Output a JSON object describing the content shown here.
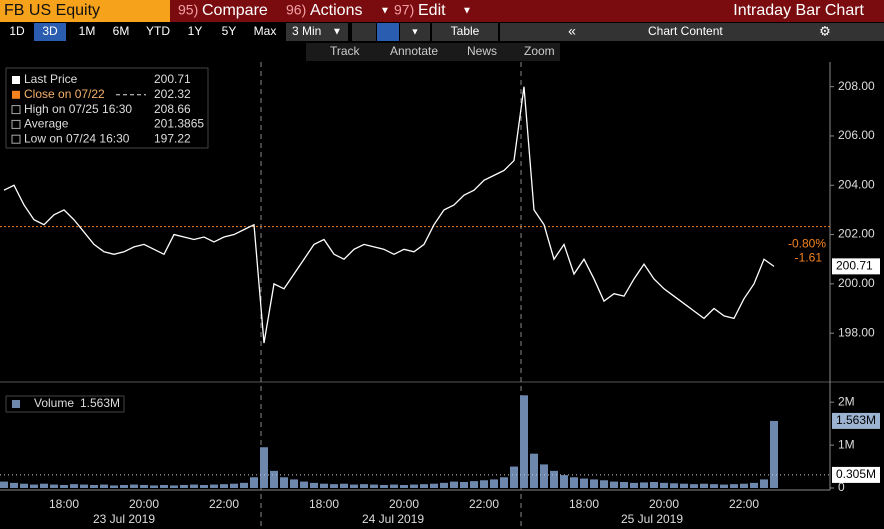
{
  "security": "FB US Equity",
  "menu": [
    {
      "number": "95)",
      "label": "Compare"
    },
    {
      "number": "96)",
      "label": "Actions"
    },
    {
      "number": "97)",
      "label": "Edit"
    }
  ],
  "screen_title": "Intraday Bar Chart",
  "periods": [
    "1D",
    "3D",
    "1M",
    "6M",
    "YTD",
    "1Y",
    "5Y",
    "Max"
  ],
  "selected_period": 1,
  "interval": "3 Min",
  "table_button": "Table",
  "chart_content_button": "Chart Content",
  "tools": [
    "Track",
    "Annotate",
    "News",
    "Zoom"
  ],
  "date_labels": [
    "23 Jul 2019",
    "24 Jul 2019",
    "25 Jul 2019"
  ],
  "chart_data": [
    {
      "type": "line",
      "color": "#ffffff",
      "categories": [
        null,
        null,
        null,
        null,
        null,
        null,
        "18:00",
        null,
        null,
        null,
        null,
        null,
        null,
        null,
        "20:00",
        null,
        null,
        null,
        null,
        null,
        null,
        null,
        "22:00",
        null,
        null,
        null,
        null,
        null,
        null,
        null,
        null,
        null,
        "18:00",
        null,
        null,
        null,
        null,
        null,
        null,
        null,
        "20:00",
        null,
        null,
        null,
        null,
        null,
        null,
        null,
        "22:00",
        null,
        null,
        null,
        null,
        null,
        null,
        null,
        null,
        null,
        "18:00",
        null,
        null,
        null,
        null,
        null,
        null,
        null,
        "20:00",
        null,
        null,
        null,
        null,
        null,
        null,
        null,
        "22:00",
        null,
        null,
        null
      ],
      "values": [
        203.8,
        204.0,
        203.2,
        202.6,
        202.4,
        202.8,
        203.0,
        202.6,
        202.1,
        201.6,
        201.3,
        201.2,
        201.3,
        201.5,
        201.6,
        201.4,
        201.2,
        202.0,
        201.9,
        201.8,
        201.9,
        201.7,
        201.9,
        202.0,
        202.2,
        202.4,
        197.6,
        200.0,
        199.8,
        200.4,
        201.0,
        201.6,
        201.8,
        201.2,
        201.0,
        201.4,
        201.6,
        201.5,
        201.4,
        201.2,
        201.4,
        201.3,
        201.6,
        202.4,
        203.0,
        203.2,
        203.6,
        203.8,
        204.2,
        204.4,
        204.6,
        205.0,
        208.0,
        203.0,
        202.4,
        201.0,
        201.6,
        200.4,
        201.0,
        200.2,
        199.3,
        199.6,
        199.5,
        200.2,
        200.8,
        200.2,
        199.8,
        199.5,
        199.2,
        198.9,
        198.6,
        199.0,
        198.7,
        198.6,
        199.4,
        200.0,
        201.0,
        200.71
      ],
      "ylim": [
        196.1,
        209
      ],
      "yticks": [
        {
          "value": 198,
          "label": "198.00"
        },
        {
          "value": 200,
          "label": "200.00"
        },
        {
          "value": 202,
          "label": "202.00"
        },
        {
          "value": 204,
          "label": "204.00"
        },
        {
          "value": 206,
          "label": "206.00"
        },
        {
          "value": 208,
          "label": "208.00"
        }
      ],
      "legend": [
        {
          "label": "Last Price",
          "value": 200.71
        },
        {
          "label": "Close on 07/22",
          "value": 202.32
        },
        {
          "label": "High on 07/25 16:30",
          "value": 208.66
        },
        {
          "label": "Average",
          "value": 201.3865
        },
        {
          "label": "Low on 07/24 16:30",
          "value": 197.22
        }
      ],
      "reference_color": "#f5821f",
      "change": -1.61,
      "change_pct": {
        "value": -0.8,
        "label": "-0.80%"
      }
    },
    {
      "type": "bar",
      "name": "Volume",
      "color": "#6d87ad",
      "values": [
        150000,
        120000,
        100000,
        80000,
        100000,
        80000,
        70000,
        90000,
        80000,
        70000,
        80000,
        60000,
        70000,
        80000,
        70000,
        60000,
        70000,
        60000,
        70000,
        80000,
        70000,
        80000,
        90000,
        100000,
        120000,
        250000,
        950000,
        400000,
        250000,
        200000,
        150000,
        120000,
        100000,
        90000,
        100000,
        80000,
        90000,
        80000,
        70000,
        80000,
        70000,
        80000,
        90000,
        100000,
        120000,
        150000,
        140000,
        160000,
        180000,
        200000,
        250000,
        500000,
        2160000,
        800000,
        550000,
        400000,
        300000,
        250000,
        220000,
        200000,
        180000,
        150000,
        140000,
        120000,
        130000,
        140000,
        120000,
        110000,
        100000,
        90000,
        100000,
        90000,
        80000,
        90000,
        100000,
        120000,
        200000,
        1563000
      ],
      "value_labels": {
        "77": "1.563M"
      },
      "ylim": [
        0,
        2400000
      ],
      "yticks": [
        0,
        {
          "value": 1000000,
          "label": "1M"
        },
        {
          "value": 2000000,
          "label": "2M"
        }
      ],
      "average": {
        "value": 305000,
        "label": "0.305M"
      }
    }
  ]
}
